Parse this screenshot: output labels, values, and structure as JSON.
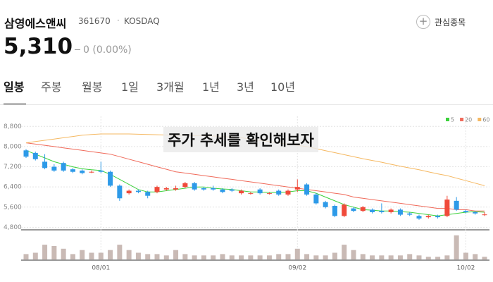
{
  "header": {
    "name": "삼영에스앤씨",
    "code": "361670",
    "market": "KOSDAQ",
    "watch": "관심종목",
    "price": "5,310",
    "change": "0 (0.00%)"
  },
  "tabs": [
    "일봉",
    "주봉",
    "월봉",
    "1일",
    "3개월",
    "1년",
    "3년",
    "10년"
  ],
  "banner": "주가 추세를 확인해보자",
  "chart_data": {
    "type": "candlestick",
    "categories": [
      null,
      null,
      null,
      null,
      null,
      null,
      null,
      null,
      "08/01",
      null,
      null,
      null,
      null,
      null,
      null,
      null,
      null,
      null,
      null,
      null,
      null,
      null,
      null,
      null,
      null,
      null,
      null,
      null,
      null,
      "09/02",
      null,
      null,
      null,
      null,
      null,
      null,
      null,
      null,
      null,
      null,
      null,
      null,
      null,
      null,
      null,
      null,
      null,
      "10/02",
      null,
      null
    ],
    "open": [
      7850,
      7750,
      7400,
      7200,
      7350,
      7100,
      7050,
      7000,
      7050,
      7000,
      6450,
      6150,
      6250,
      6200,
      6200,
      6300,
      6300,
      6400,
      6550,
      6350,
      6350,
      6300,
      6300,
      6150,
      6150,
      6300,
      6150,
      6250,
      6100,
      6300,
      6500,
      6100,
      5800,
      5650,
      5250,
      5550,
      5450,
      5500,
      5450,
      5400,
      5500,
      5350,
      5250,
      5200,
      5250,
      5250,
      5850,
      5450,
      5400,
      5300
    ],
    "high": [
      7900,
      7800,
      7700,
      7300,
      7400,
      7150,
      7100,
      7050,
      7400,
      7050,
      6500,
      6300,
      6300,
      6250,
      6450,
      6400,
      6450,
      6600,
      6600,
      6400,
      6450,
      6350,
      6350,
      6300,
      6200,
      6350,
      6200,
      6300,
      6300,
      6700,
      6550,
      6150,
      5850,
      5700,
      5750,
      5600,
      5650,
      5550,
      5750,
      5550,
      5550,
      5400,
      5300,
      5300,
      5300,
      6050,
      6000,
      5500,
      5450,
      5400
    ],
    "low": [
      7550,
      7450,
      7100,
      7000,
      7000,
      6950,
      6900,
      6950,
      6950,
      6400,
      5850,
      6100,
      6150,
      5950,
      6150,
      6250,
      6250,
      6350,
      6250,
      6250,
      6250,
      6150,
      6200,
      6100,
      6100,
      6100,
      6100,
      6050,
      6050,
      6200,
      6050,
      5700,
      5550,
      5200,
      5200,
      5400,
      5400,
      5350,
      5350,
      5350,
      5250,
      5250,
      5100,
      5150,
      5150,
      5200,
      5450,
      5350,
      5300,
      5250
    ],
    "close": [
      7600,
      7500,
      7150,
      7050,
      7050,
      7000,
      6950,
      7000,
      7000,
      6450,
      5950,
      6250,
      6200,
      6050,
      6400,
      6350,
      6350,
      6550,
      6300,
      6300,
      6300,
      6200,
      6250,
      6250,
      6150,
      6150,
      6150,
      6100,
      6250,
      6400,
      6100,
      5750,
      5600,
      5250,
      5700,
      5450,
      5600,
      5400,
      5400,
      5500,
      5300,
      5300,
      5150,
      5250,
      5200,
      5900,
      5500,
      5400,
      5350,
      5310
    ],
    "up_color": "#f04a3a",
    "down_color": "#2d9ae8",
    "series": [
      {
        "name": "5",
        "color": "#3bd13b",
        "values": [
          7850,
          7700,
          7550,
          7400,
          7300,
          7200,
          7120,
          7080,
          7050,
          6900,
          6700,
          6500,
          6300,
          6200,
          6200,
          6250,
          6300,
          6350,
          6400,
          6400,
          6350,
          6320,
          6300,
          6250,
          6200,
          6200,
          6180,
          6180,
          6200,
          6250,
          6250,
          6150,
          6000,
          5850,
          5700,
          5600,
          5500,
          5480,
          5450,
          5450,
          5420,
          5400,
          5350,
          5300,
          5250,
          5300,
          5350,
          5400,
          5420,
          5400
        ]
      },
      {
        "name": "20",
        "color": "#f06a5a",
        "values": [
          8150,
          8100,
          8050,
          8000,
          7950,
          7900,
          7850,
          7800,
          7750,
          7700,
          7600,
          7500,
          7400,
          7300,
          7200,
          7100,
          7000,
          6950,
          6900,
          6850,
          6800,
          6750,
          6700,
          6650,
          6600,
          6550,
          6500,
          6450,
          6400,
          6350,
          6300,
          6250,
          6200,
          6150,
          6100,
          6000,
          5950,
          5900,
          5850,
          5800,
          5750,
          5700,
          5650,
          5600,
          5550,
          5550,
          5500,
          5500,
          5450,
          5450
        ]
      },
      {
        "name": "60",
        "color": "#f5b861",
        "values": [
          8150,
          8200,
          8250,
          8300,
          8350,
          8400,
          8450,
          8480,
          8500,
          8500,
          8500,
          8500,
          8490,
          8480,
          8470,
          8460,
          8450,
          8450,
          8440,
          8430,
          8420,
          8400,
          8380,
          8350,
          8300,
          8250,
          8200,
          8150,
          8100,
          8050,
          8000,
          7920,
          7840,
          7760,
          7680,
          7600,
          7520,
          7450,
          7380,
          7300,
          7220,
          7150,
          7080,
          7000,
          6920,
          6850,
          6750,
          6650,
          6550,
          6450
        ]
      }
    ],
    "volume": [
      8,
      10,
      22,
      20,
      16,
      8,
      14,
      10,
      10,
      14,
      22,
      14,
      10,
      8,
      8,
      6,
      14,
      8,
      6,
      6,
      6,
      8,
      6,
      6,
      6,
      6,
      6,
      8,
      8,
      16,
      8,
      6,
      6,
      10,
      22,
      14,
      8,
      6,
      6,
      6,
      6,
      8,
      6,
      4,
      4,
      6,
      36,
      10,
      8,
      4
    ],
    "volume_color": "#c9bab5",
    "vlim": [
      0,
      40
    ],
    "ylim": [
      4700,
      9200
    ],
    "yticks": [
      {
        "value": 4800,
        "label": "4,800"
      },
      {
        "value": 5600,
        "label": "5,600"
      },
      {
        "value": 6400,
        "label": "6,400"
      },
      {
        "value": 7200,
        "label": "7,200"
      },
      {
        "value": 8000,
        "label": "8,000"
      },
      {
        "value": 8800,
        "label": "8,800"
      }
    ],
    "grid": true
  }
}
